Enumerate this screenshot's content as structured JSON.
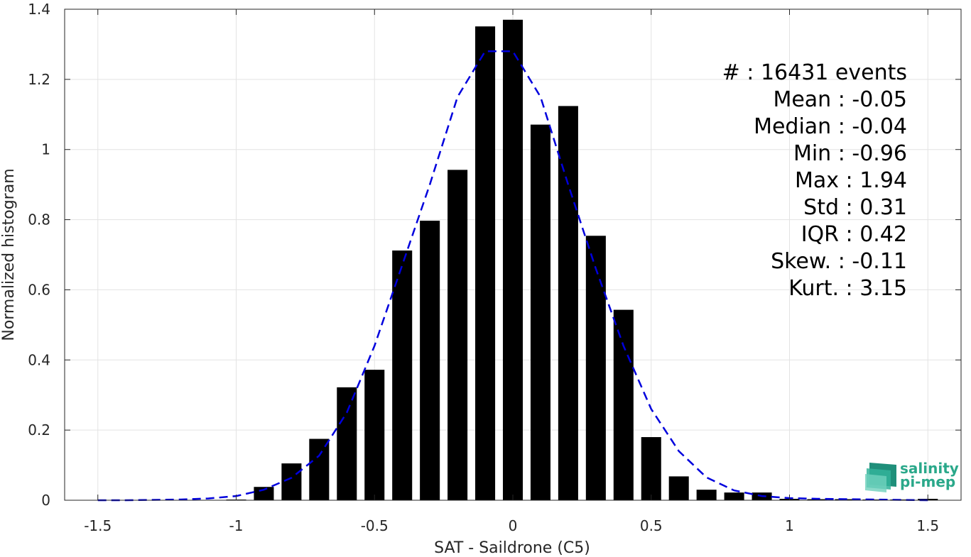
{
  "chart_data": {
    "type": "bar",
    "xlabel": "SAT - Saildrone (C5)",
    "ylabel": "Normalized histogram",
    "xlim": [
      -1.62,
      1.62
    ],
    "ylim": [
      0,
      1.4
    ],
    "xticks": [
      -1.5,
      -1,
      -0.5,
      0,
      0.5,
      1,
      1.5
    ],
    "xtick_labels": [
      "-1.5",
      "-1",
      "-0.5",
      "0",
      "0.5",
      "1",
      "1.5"
    ],
    "yticks": [
      0,
      0.2,
      0.4,
      0.6,
      0.8,
      1,
      1.2,
      1.4
    ],
    "ytick_labels": [
      "0",
      "0.2",
      "0.4",
      "0.6",
      "0.8",
      "1",
      "1.2",
      "1.4"
    ],
    "grid": true,
    "bar_width": 0.072,
    "bar_color": "#000000",
    "bars": {
      "x": [
        -1.0,
        -0.9,
        -0.8,
        -0.7,
        -0.6,
        -0.5,
        -0.4,
        -0.3,
        -0.2,
        -0.1,
        0.0,
        0.1,
        0.2,
        0.3,
        0.4,
        0.5,
        0.6,
        0.7,
        0.8,
        0.9,
        1.0,
        1.1,
        1.2,
        1.3,
        1.4,
        1.5
      ],
      "values": [
        0.002,
        0.038,
        0.105,
        0.175,
        0.322,
        0.372,
        0.712,
        0.797,
        0.942,
        1.351,
        1.37,
        1.071,
        1.124,
        0.754,
        0.543,
        0.18,
        0.068,
        0.03,
        0.022,
        0.022,
        0.004,
        0.003,
        0.003,
        0.002,
        0.002,
        0.004
      ]
    },
    "fit_curve": {
      "style": "dashed",
      "color": "#0000dd",
      "x": [
        -1.5,
        -1.4,
        -1.3,
        -1.2,
        -1.1,
        -1.0,
        -0.9,
        -0.8,
        -0.7,
        -0.6,
        -0.5,
        -0.4,
        -0.3,
        -0.2,
        -0.1,
        0.0,
        0.1,
        0.2,
        0.3,
        0.4,
        0.5,
        0.6,
        0.7,
        0.8,
        0.9,
        1.0,
        1.1,
        1.2,
        1.3,
        1.4,
        1.5
      ],
      "y": [
        0.0,
        0.0,
        0.001,
        0.002,
        0.005,
        0.012,
        0.03,
        0.064,
        0.127,
        0.25,
        0.44,
        0.67,
        0.9,
        1.15,
        1.28,
        1.28,
        1.15,
        0.9,
        0.66,
        0.44,
        0.26,
        0.14,
        0.065,
        0.028,
        0.012,
        0.006,
        0.004,
        0.003,
        0.002,
        0.001,
        0.0
      ]
    },
    "stats": [
      {
        "label": "#  ",
        "value": ": 16431 events"
      },
      {
        "label": "Mean ",
        "value": ": -0.05"
      },
      {
        "label": "Median ",
        "value": ": -0.04"
      },
      {
        "label": "Min ",
        "value": ": -0.96"
      },
      {
        "label": "Max ",
        "value": ": 1.94"
      },
      {
        "label": "Std ",
        "value": ": 0.31"
      },
      {
        "label": "IQR ",
        "value": ": 0.42"
      },
      {
        "label": "Skew. ",
        "value": ": -0.11"
      },
      {
        "label": "Kurt. ",
        "value": ": 3.15"
      }
    ]
  },
  "logo": {
    "line1": "salinity",
    "line2": "pi-mep",
    "color": "#2aa88a",
    "icon": "salinity-wave-icon"
  }
}
